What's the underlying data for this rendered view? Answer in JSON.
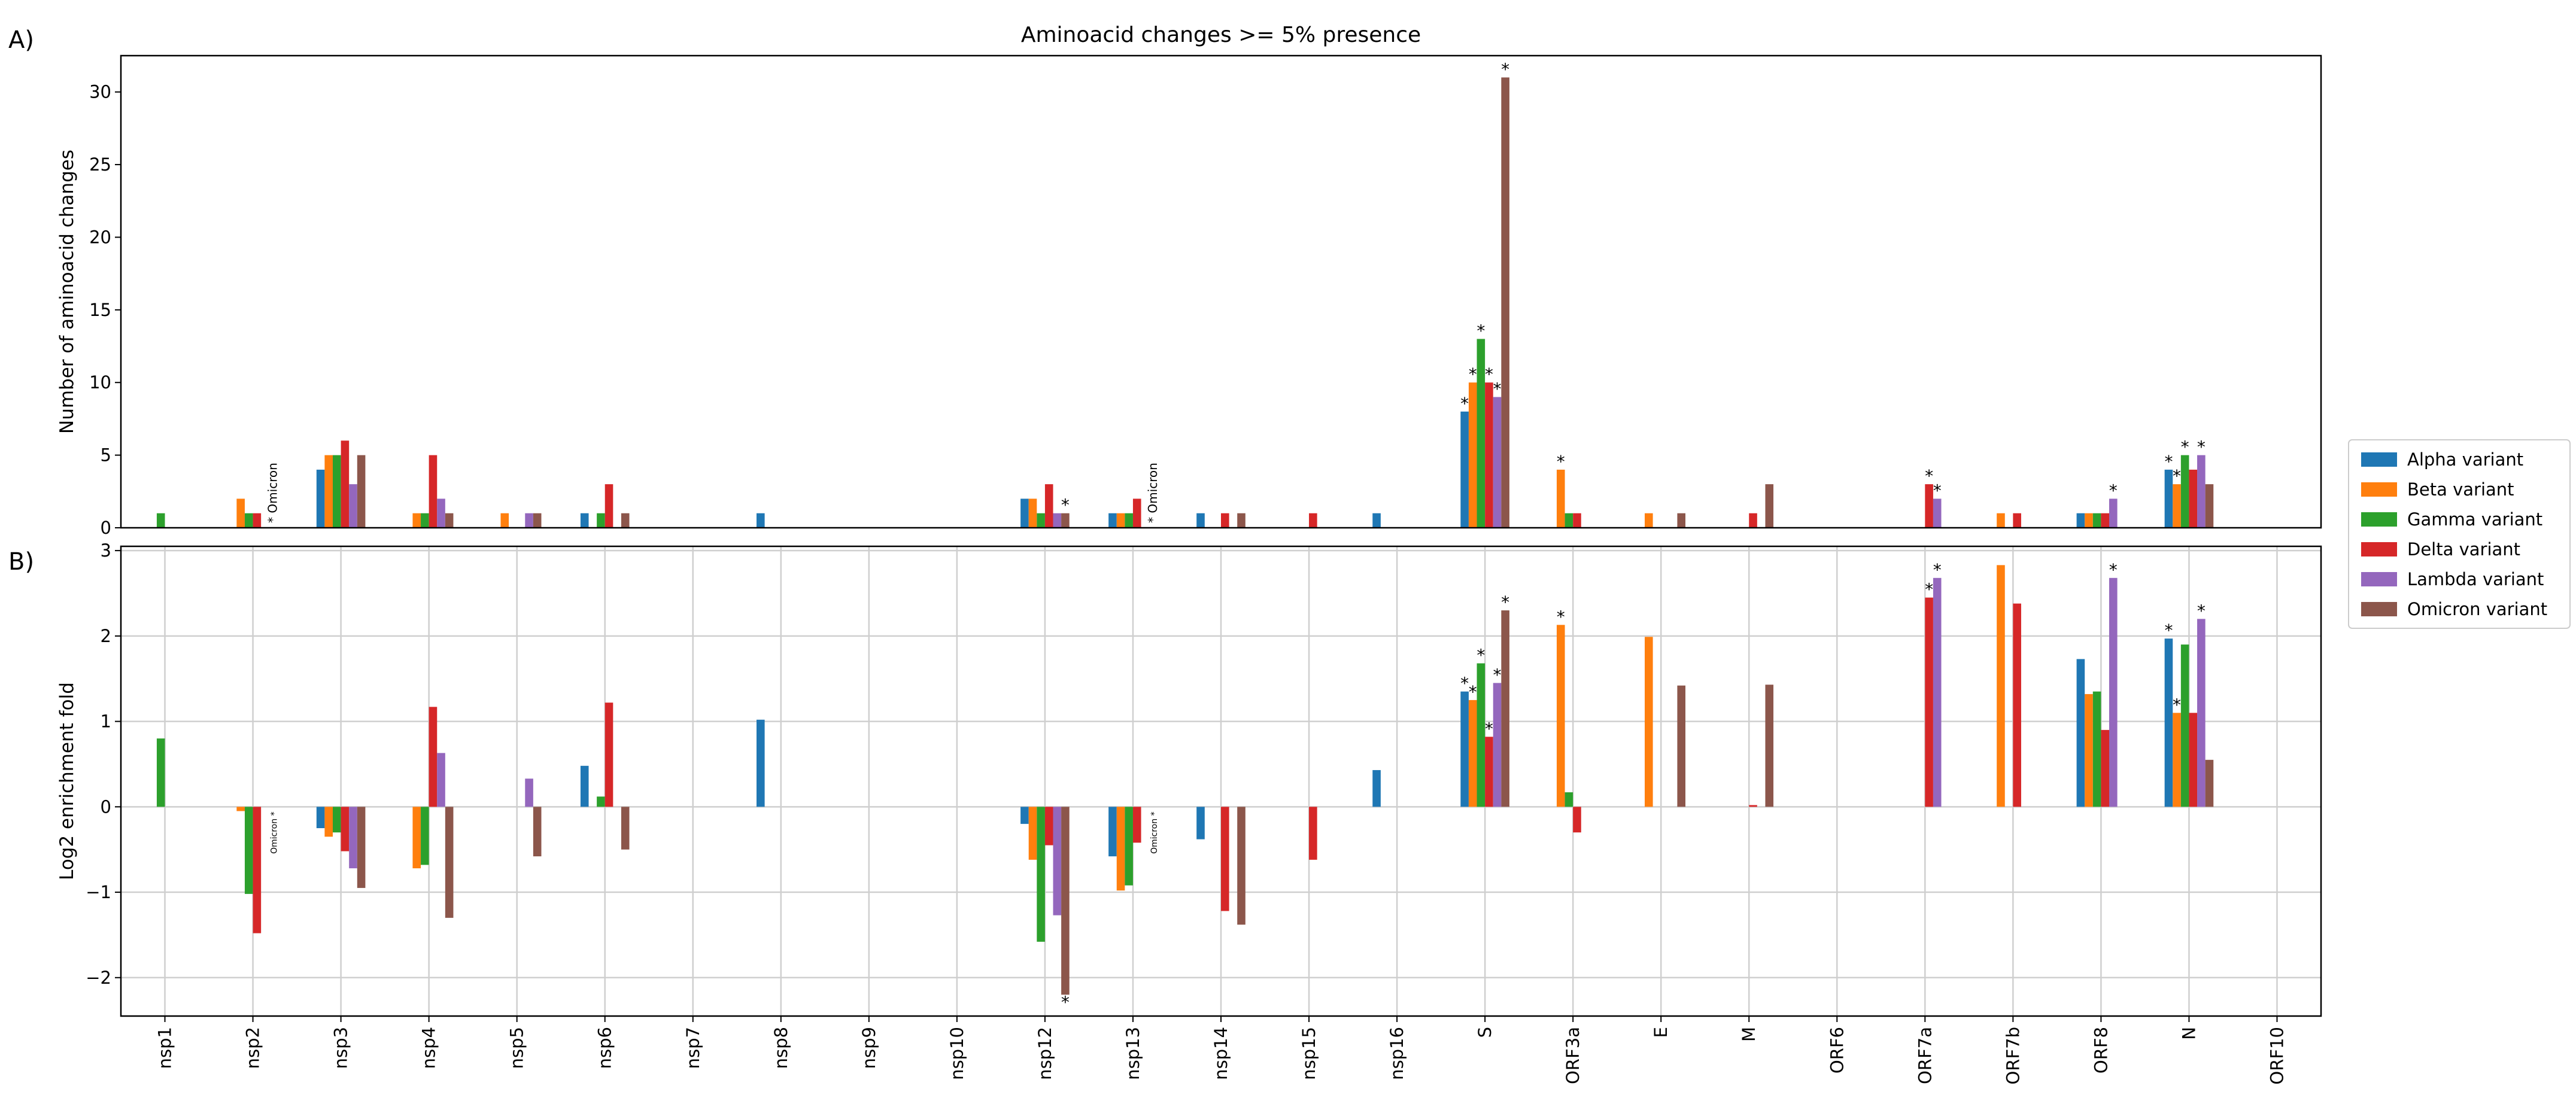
{
  "figure": {
    "panel_a_label": "A)",
    "panel_b_label": "B)"
  },
  "legend": {
    "entries": [
      {
        "label": "Alpha variant",
        "color": "#1f77b4"
      },
      {
        "label": "Beta variant",
        "color": "#ff7f0e"
      },
      {
        "label": "Gamma variant",
        "color": "#2ca02c"
      },
      {
        "label": "Delta variant",
        "color": "#d62728"
      },
      {
        "label": "Lambda variant",
        "color": "#9467bd"
      },
      {
        "label": "Omicron variant",
        "color": "#8c564b"
      }
    ]
  },
  "chart_data": [
    {
      "type": "bar",
      "title": "Aminoacid changes >= 5% presence",
      "xlabel": "",
      "ylabel": "Number of aminoacid changes",
      "ylim": [
        0,
        32.5
      ],
      "yticks": [
        0,
        5,
        10,
        15,
        20,
        25,
        30
      ],
      "grid": false,
      "legend_position": "right",
      "categories": [
        "nsp1",
        "nsp2",
        "nsp3",
        "nsp4",
        "nsp5",
        "nsp6",
        "nsp7",
        "nsp8",
        "nsp9",
        "nsp10",
        "nsp12",
        "nsp13",
        "nsp14",
        "nsp15",
        "nsp16",
        "S",
        "ORF3a",
        "E",
        "M",
        "ORF6",
        "ORF7a",
        "ORF7b",
        "ORF8",
        "N",
        "ORF10"
      ],
      "series": [
        {
          "name": "Alpha variant",
          "values": [
            0,
            0,
            4,
            0,
            0,
            1,
            0,
            1,
            0,
            0,
            2,
            1,
            1,
            0,
            1,
            8,
            0,
            0,
            0,
            0,
            0,
            0,
            1,
            4,
            0
          ]
        },
        {
          "name": "Beta variant",
          "values": [
            0,
            2,
            5,
            1,
            1,
            0,
            0,
            0,
            0,
            0,
            2,
            1,
            0,
            0,
            0,
            10,
            4,
            1,
            0,
            0,
            0,
            1,
            1,
            3,
            0
          ]
        },
        {
          "name": "Gamma variant",
          "values": [
            1,
            1,
            5,
            1,
            0,
            1,
            0,
            0,
            0,
            0,
            1,
            1,
            0,
            0,
            0,
            13,
            1,
            0,
            0,
            0,
            0,
            0,
            1,
            5,
            0
          ]
        },
        {
          "name": "Delta variant",
          "values": [
            0,
            1,
            6,
            5,
            0,
            3,
            0,
            0,
            0,
            0,
            3,
            2,
            1,
            1,
            0,
            10,
            1,
            0,
            1,
            0,
            3,
            1,
            1,
            4,
            0
          ]
        },
        {
          "name": "Lambda variant",
          "values": [
            0,
            0,
            3,
            2,
            1,
            0,
            0,
            0,
            0,
            0,
            1,
            0,
            0,
            0,
            0,
            9,
            0,
            0,
            0,
            0,
            2,
            0,
            2,
            5,
            0
          ]
        },
        {
          "name": "Omicron variant",
          "values": [
            0,
            0,
            5,
            1,
            1,
            1,
            0,
            0,
            0,
            0,
            1,
            0,
            1,
            0,
            0,
            31,
            0,
            1,
            3,
            0,
            0,
            0,
            0,
            3,
            0
          ]
        }
      ],
      "asterisks": [
        {
          "category": "nsp12",
          "series": "Omicron variant"
        },
        {
          "category": "S",
          "series": "Alpha variant"
        },
        {
          "category": "S",
          "series": "Beta variant"
        },
        {
          "category": "S",
          "series": "Gamma variant"
        },
        {
          "category": "S",
          "series": "Delta variant"
        },
        {
          "category": "S",
          "series": "Lambda variant"
        },
        {
          "category": "S",
          "series": "Omicron variant"
        },
        {
          "category": "ORF3a",
          "series": "Beta variant"
        },
        {
          "category": "ORF7a",
          "series": "Delta variant"
        },
        {
          "category": "ORF7a",
          "series": "Lambda variant"
        },
        {
          "category": "ORF8",
          "series": "Lambda variant"
        },
        {
          "category": "N",
          "series": "Alpha variant"
        },
        {
          "category": "N",
          "series": "Beta variant"
        },
        {
          "category": "N",
          "series": "Gamma variant"
        },
        {
          "category": "N",
          "series": "Lambda variant"
        }
      ],
      "annotations": [
        {
          "category": "nsp2",
          "text": "* Omicron"
        },
        {
          "category": "nsp13",
          "text": "* Omicron"
        }
      ]
    },
    {
      "type": "bar",
      "title": "",
      "xlabel": "",
      "ylabel": "Log2 enrichment fold",
      "ylim": [
        -2.45,
        3.05
      ],
      "yticks": [
        -2,
        -1,
        0,
        1,
        2,
        3
      ],
      "ytick_labels": [
        "−2",
        "−1",
        "0",
        "1",
        "2",
        "3"
      ],
      "grid": true,
      "categories": [
        "nsp1",
        "nsp2",
        "nsp3",
        "nsp4",
        "nsp5",
        "nsp6",
        "nsp7",
        "nsp8",
        "nsp9",
        "nsp10",
        "nsp12",
        "nsp13",
        "nsp14",
        "nsp15",
        "nsp16",
        "S",
        "ORF3a",
        "E",
        "M",
        "ORF6",
        "ORF7a",
        "ORF7b",
        "ORF8",
        "N",
        "ORF10"
      ],
      "series": [
        {
          "name": "Alpha variant",
          "values": [
            0,
            0,
            -0.25,
            0,
            0,
            0.48,
            0,
            1.02,
            0,
            0,
            -0.2,
            -0.58,
            -0.38,
            0,
            0.43,
            1.35,
            0,
            0,
            0,
            0,
            0,
            0,
            1.73,
            1.97,
            0
          ]
        },
        {
          "name": "Beta variant",
          "values": [
            0,
            -0.05,
            -0.35,
            -0.72,
            0,
            0,
            0,
            0,
            0,
            0,
            -0.62,
            -0.98,
            0,
            0,
            0,
            1.25,
            2.13,
            1.99,
            0,
            0,
            0,
            2.83,
            1.32,
            1.1,
            0
          ]
        },
        {
          "name": "Gamma variant",
          "values": [
            0.8,
            -1.02,
            -0.3,
            -0.68,
            0,
            0.12,
            0,
            0,
            0,
            0,
            -1.58,
            -0.92,
            0,
            0,
            0,
            1.68,
            0.17,
            0,
            0,
            0,
            0,
            0,
            1.35,
            1.9,
            0
          ]
        },
        {
          "name": "Delta variant",
          "values": [
            0,
            -1.48,
            -0.52,
            1.17,
            0,
            1.22,
            0,
            0,
            0,
            0,
            -0.45,
            -0.42,
            -1.22,
            -0.62,
            0,
            0.82,
            -0.3,
            0,
            0.02,
            0,
            2.45,
            2.38,
            0.9,
            1.1,
            0
          ]
        },
        {
          "name": "Lambda variant",
          "values": [
            0,
            0,
            -0.72,
            0.63,
            0.33,
            0,
            0,
            0,
            0,
            0,
            -1.27,
            0,
            0,
            0,
            0,
            1.45,
            0,
            0,
            0,
            0,
            2.68,
            0,
            2.68,
            2.2,
            0
          ]
        },
        {
          "name": "Omicron variant",
          "values": [
            0,
            0,
            -0.95,
            -1.3,
            -0.58,
            -0.5,
            0,
            0,
            0,
            0,
            -2.2,
            0,
            -1.38,
            0,
            0,
            2.3,
            0,
            1.42,
            1.43,
            0,
            0,
            0,
            0,
            0.55,
            0
          ]
        }
      ],
      "asterisks": [
        {
          "category": "nsp12",
          "series": "Omicron variant"
        },
        {
          "category": "S",
          "series": "Alpha variant"
        },
        {
          "category": "S",
          "series": "Beta variant"
        },
        {
          "category": "S",
          "series": "Gamma variant"
        },
        {
          "category": "S",
          "series": "Delta variant"
        },
        {
          "category": "S",
          "series": "Lambda variant"
        },
        {
          "category": "S",
          "series": "Omicron variant"
        },
        {
          "category": "ORF3a",
          "series": "Beta variant"
        },
        {
          "category": "ORF7a",
          "series": "Delta variant"
        },
        {
          "category": "ORF7a",
          "series": "Lambda variant"
        },
        {
          "category": "ORF8",
          "series": "Lambda variant"
        },
        {
          "category": "N",
          "series": "Alpha variant"
        },
        {
          "category": "N",
          "series": "Beta variant"
        },
        {
          "category": "N",
          "series": "Lambda variant"
        }
      ],
      "annotations": [
        {
          "category": "nsp2",
          "text": "Omicron *"
        },
        {
          "category": "nsp13",
          "text": "Omicron *"
        }
      ]
    }
  ]
}
